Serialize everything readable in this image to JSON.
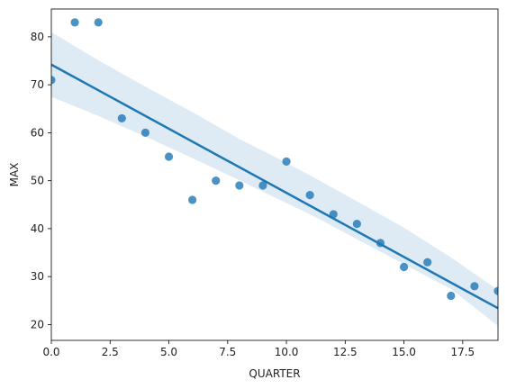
{
  "chart_data": {
    "type": "scatter",
    "title": "",
    "xlabel": "QUARTER",
    "ylabel": "MAX",
    "xlim": [
      0,
      19
    ],
    "ylim": [
      16.7,
      85.8
    ],
    "x_ticks": [
      0.0,
      2.5,
      5.0,
      7.5,
      10.0,
      12.5,
      15.0,
      17.5
    ],
    "x_tick_labels": [
      "0.0",
      "2.5",
      "5.0",
      "7.5",
      "10.0",
      "12.5",
      "15.0",
      "17.5"
    ],
    "y_ticks": [
      20,
      30,
      40,
      50,
      60,
      70,
      80
    ],
    "y_tick_labels": [
      "20",
      "30",
      "40",
      "50",
      "60",
      "70",
      "80"
    ],
    "grid": false,
    "legend": "none",
    "points": {
      "x": [
        0,
        1,
        2,
        3,
        4,
        5,
        6,
        7,
        8,
        9,
        10,
        11,
        12,
        13,
        14,
        15,
        16,
        17,
        18,
        19
      ],
      "y": [
        71,
        83,
        83,
        63,
        60,
        55,
        46,
        50,
        49,
        49,
        54,
        47,
        43,
        41,
        37,
        32,
        33,
        26,
        28,
        27
      ]
    },
    "regression": {
      "x": [
        0,
        19
      ],
      "y": [
        74.2,
        23.4
      ]
    },
    "confidence_band": {
      "x": [
        0,
        2,
        4,
        6,
        8,
        9.5,
        11,
        13,
        15,
        17,
        19
      ],
      "lower": [
        67.5,
        63.5,
        59.2,
        54.7,
        50.1,
        46.5,
        43.0,
        37.8,
        32.6,
        27.4,
        19.7
      ],
      "upper": [
        81.0,
        75.1,
        69.6,
        64.3,
        58.7,
        55.0,
        51.1,
        45.7,
        40.2,
        34.0,
        27.2
      ]
    },
    "colors": {
      "point": "#1f77b4",
      "line": "#1f77b4",
      "band": "#1f77b4"
    }
  }
}
